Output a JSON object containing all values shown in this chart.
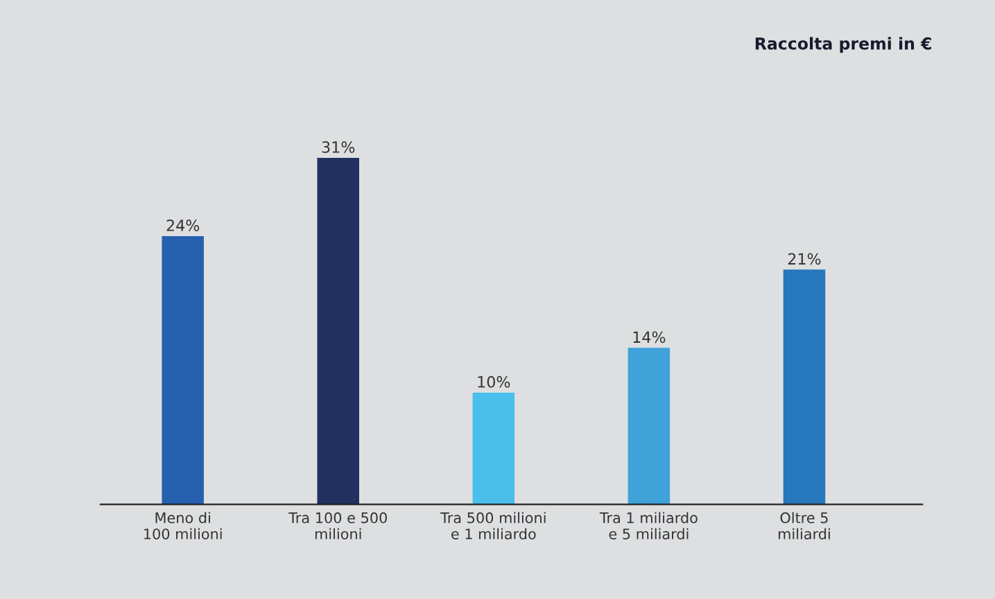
{
  "chart_data": {
    "type": "bar",
    "title": "Raccolta premi in €",
    "categories": [
      "Meno di\n100 milioni",
      "Tra 100 e 500\nmilioni",
      "Tra 500 milioni\ne 1 miliardo",
      "Tra 1 miliardo\ne 5 miliardi",
      "Oltre 5\nmiliardi"
    ],
    "values": [
      24,
      31,
      10,
      14,
      21
    ],
    "colors": [
      "#2660ae",
      "#21305f",
      "#4bbfeb",
      "#3fa2d9",
      "#2677bc"
    ],
    "value_labels": [
      "24%",
      "31%",
      "10%",
      "14%",
      "21%"
    ],
    "grid": false,
    "legend": false
  }
}
